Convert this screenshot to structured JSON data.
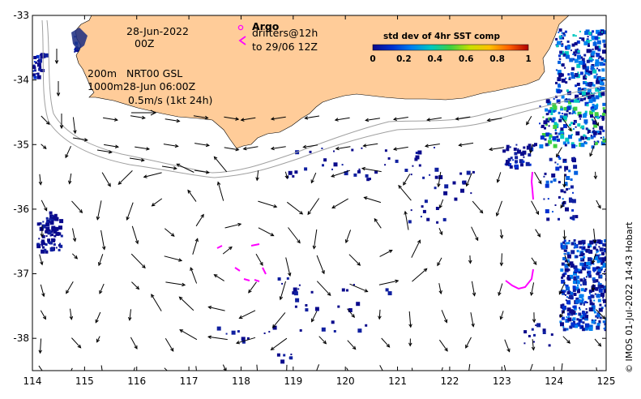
{
  "map": {
    "lon_ticks": [
      "114",
      "115",
      "116",
      "117",
      "118",
      "119",
      "120",
      "121",
      "122",
      "123",
      "124",
      "125"
    ],
    "lat_ticks": [
      "-33",
      "-34",
      "-35",
      "-36",
      "-37",
      "-38"
    ],
    "lon_range": [
      114,
      125
    ],
    "lat_range": [
      -38.5,
      -33
    ]
  },
  "annotations": {
    "date_line1": "28-Jun-2022",
    "date_line2": "00Z",
    "depth_line1_a": "200m",
    "depth_line1_b": "NRT00 GSL",
    "depth_line2_a": "1000m",
    "depth_line2_b": "28-Jun 06:00Z",
    "scale_label": "0.5m/s (1kt 24h)",
    "argo_label": "Argo",
    "drifters_line1": "drifters@12h",
    "drifters_line2": "to 29/06 12Z"
  },
  "colorbar": {
    "title": "std dev of 4hr SST comp",
    "ticks": [
      "0",
      "0.2",
      "0.4",
      "0.6",
      "0.8",
      "1"
    ],
    "colors": [
      "#0a0a8c",
      "#0030d0",
      "#0080f0",
      "#00c8c0",
      "#40d040",
      "#c8e000",
      "#ffc000",
      "#ff6000",
      "#b00000"
    ]
  },
  "credit": "© IMOS 01-Jul-2022 14:43 Hobart",
  "colors": {
    "land": "#ffcc99",
    "isobath": "#a0a0a0",
    "drifter": "#ff00ff",
    "arrow": "#000000"
  }
}
